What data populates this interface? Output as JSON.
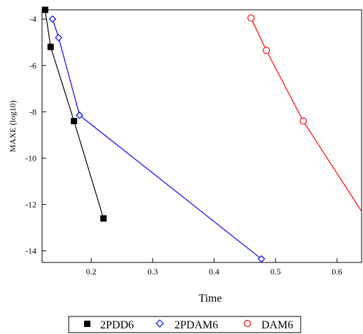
{
  "chart_data": {
    "type": "line",
    "xlabel": "Time",
    "ylabel": "MAXE (log10)",
    "xlim": [
      0.12,
      0.64
    ],
    "ylim": [
      -14.5,
      -3.6
    ],
    "xticks": [
      0.2,
      0.3,
      0.4,
      0.5,
      0.6
    ],
    "xtick_labels": [
      "0.2",
      "0.3",
      "0.4",
      "0.5",
      "0.6"
    ],
    "yticks": [
      -4,
      -6,
      -8,
      -10,
      -12,
      -14
    ],
    "ytick_labels": [
      "-4",
      "-6",
      "-8",
      "-10",
      "-12",
      "-14"
    ],
    "legend_position": "bottom-center",
    "grid": false,
    "series": [
      {
        "name": "2PDD6",
        "color": "#000000",
        "marker": "filled-square",
        "x": [
          0.125,
          0.134,
          0.172,
          0.22
        ],
        "y": [
          -3.6,
          -5.2,
          -8.4,
          -12.6
        ]
      },
      {
        "name": "2PDAM6",
        "color": "#0000ff",
        "marker": "hollow-diamond",
        "x": [
          0.137,
          0.147,
          0.181,
          0.477
        ],
        "y": [
          -4.0,
          -4.8,
          -8.15,
          -14.35
        ]
      },
      {
        "name": "DAM6",
        "color": "#ff0000",
        "marker": "hollow-circle",
        "x": [
          0.46,
          0.485,
          0.545
        ],
        "y": [
          -3.95,
          -5.35,
          -8.4
        ],
        "line_extends_to": {
          "x": 0.64,
          "y": -12.3
        }
      }
    ]
  }
}
